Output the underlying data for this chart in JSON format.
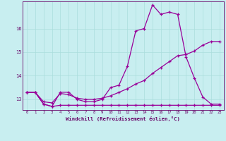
{
  "xlabel": "Windchill (Refroidissement éolien,°C)",
  "bg_color": "#c8eef0",
  "line_color": "#990099",
  "grid_color": "#aadddd",
  "text_color": "#660066",
  "xlim": [
    -0.5,
    23.5
  ],
  "ylim": [
    12.55,
    17.15
  ],
  "xticks": [
    0,
    1,
    2,
    3,
    4,
    5,
    6,
    7,
    8,
    9,
    10,
    11,
    12,
    13,
    14,
    15,
    16,
    17,
    18,
    19,
    20,
    21,
    22,
    23
  ],
  "yticks": [
    13,
    14,
    15,
    16
  ],
  "line1_x": [
    0,
    1,
    2,
    3,
    4,
    5,
    6,
    7,
    8,
    9,
    10,
    11,
    12,
    13,
    14,
    15,
    16,
    17,
    18,
    19,
    20,
    21,
    22,
    23
  ],
  "line1_y": [
    13.3,
    13.3,
    12.8,
    12.7,
    13.3,
    13.3,
    13.0,
    12.9,
    12.9,
    13.0,
    13.5,
    13.6,
    14.4,
    15.9,
    16.0,
    17.0,
    16.6,
    16.7,
    16.6,
    14.8,
    13.9,
    13.1,
    12.8,
    12.8
  ],
  "line2_x": [
    0,
    1,
    2,
    3,
    4,
    5,
    6,
    7,
    8,
    9,
    10,
    11,
    12,
    13,
    14,
    15,
    16,
    17,
    18,
    19,
    20,
    21,
    22,
    23
  ],
  "line2_y": [
    13.3,
    13.3,
    12.8,
    12.7,
    12.75,
    12.75,
    12.75,
    12.75,
    12.75,
    12.75,
    12.75,
    12.75,
    12.75,
    12.75,
    12.75,
    12.75,
    12.75,
    12.75,
    12.75,
    12.75,
    12.75,
    12.75,
    12.75,
    12.75
  ],
  "line3_x": [
    0,
    1,
    2,
    3,
    4,
    5,
    6,
    7,
    8,
    9,
    10,
    11,
    12,
    13,
    14,
    15,
    16,
    17,
    18,
    19,
    20,
    21,
    22,
    23
  ],
  "line3_y": [
    13.3,
    13.3,
    12.9,
    12.85,
    13.25,
    13.2,
    13.05,
    13.0,
    13.0,
    13.05,
    13.15,
    13.3,
    13.45,
    13.65,
    13.8,
    14.1,
    14.35,
    14.6,
    14.85,
    14.9,
    15.05,
    15.3,
    15.45,
    15.45
  ]
}
